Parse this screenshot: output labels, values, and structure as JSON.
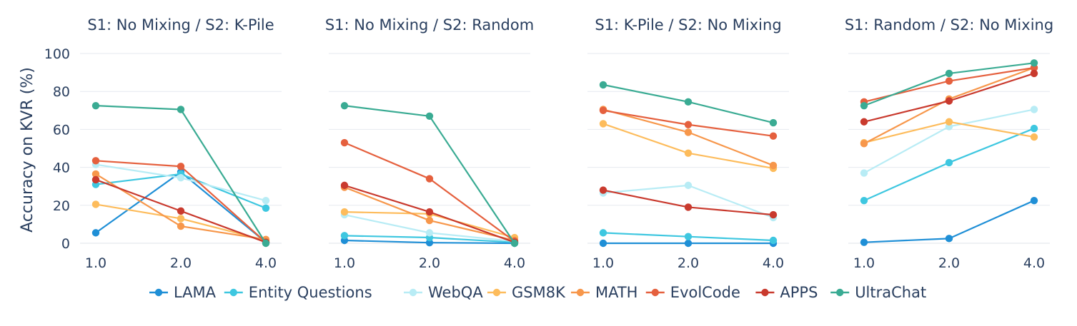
{
  "chart_data": {
    "type": "line",
    "ylabel": "Accuracy on KVR (%)",
    "xlabel": "",
    "x": [
      1.0,
      2.0,
      4.0
    ],
    "x_tick_labels": [
      "1.0",
      "2.0",
      "4.0"
    ],
    "ylim": [
      0,
      100
    ],
    "y_ticks": [
      0,
      20,
      40,
      60,
      80,
      100
    ],
    "grid": true,
    "legend_position": "bottom",
    "legend": [
      "LAMA",
      "Entity Questions",
      "WebQA",
      "GSM8K",
      "MATH",
      "EvolCode",
      "APPS",
      "UltraChat"
    ],
    "colors": {
      "LAMA": "#1f8fd6",
      "Entity Questions": "#3ec7e0",
      "WebQA": "#b8ecf5",
      "GSM8K": "#fdbc5c",
      "MATH": "#f7974b",
      "EvolCode": "#e5603e",
      "APPS": "#c93a2e",
      "UltraChat": "#3aab93"
    },
    "panels": [
      {
        "title": "S1: No Mixing / S2: K-Pile",
        "series": [
          {
            "name": "LAMA",
            "values": [
              5.5,
              37.5,
              0.5
            ]
          },
          {
            "name": "Entity Questions",
            "values": [
              31,
              36.5,
              18.5
            ]
          },
          {
            "name": "WebQA",
            "values": [
              41.5,
              34.5,
              22.5
            ]
          },
          {
            "name": "GSM8K",
            "values": [
              20.5,
              13,
              1.5
            ]
          },
          {
            "name": "MATH",
            "values": [
              36.5,
              9,
              2
            ]
          },
          {
            "name": "EvolCode",
            "values": [
              43.5,
              40.5,
              0.5
            ]
          },
          {
            "name": "APPS",
            "values": [
              33.5,
              17,
              0.5
            ]
          },
          {
            "name": "UltraChat",
            "values": [
              72.5,
              70.5,
              0
            ]
          }
        ]
      },
      {
        "title": "S1: No Mixing / S2: Random",
        "series": [
          {
            "name": "LAMA",
            "values": [
              1.5,
              0.3,
              0
            ]
          },
          {
            "name": "Entity Questions",
            "values": [
              4,
              3,
              0.5
            ]
          },
          {
            "name": "WebQA",
            "values": [
              15,
              5.5,
              1
            ]
          },
          {
            "name": "GSM8K",
            "values": [
              16.5,
              15.5,
              3
            ]
          },
          {
            "name": "MATH",
            "values": [
              29.5,
              12,
              1.5
            ]
          },
          {
            "name": "EvolCode",
            "values": [
              53,
              34,
              1
            ]
          },
          {
            "name": "APPS",
            "values": [
              30.5,
              16.5,
              0.5
            ]
          },
          {
            "name": "UltraChat",
            "values": [
              72.5,
              67,
              0
            ]
          }
        ]
      },
      {
        "title": "S1: K-Pile / S2: No Mixing",
        "series": [
          {
            "name": "LAMA",
            "values": [
              0,
              0,
              0
            ]
          },
          {
            "name": "Entity Questions",
            "values": [
              5.5,
              3.5,
              1.5
            ]
          },
          {
            "name": "WebQA",
            "values": [
              26.5,
              30.5,
              13.5
            ]
          },
          {
            "name": "GSM8K",
            "values": [
              63,
              47.5,
              39.5
            ]
          },
          {
            "name": "MATH",
            "values": [
              70.5,
              58.5,
              41
            ]
          },
          {
            "name": "EvolCode",
            "values": [
              70,
              62.5,
              56.5
            ]
          },
          {
            "name": "APPS",
            "values": [
              28,
              19,
              15
            ]
          },
          {
            "name": "UltraChat",
            "values": [
              83.5,
              74.5,
              63.5
            ]
          }
        ]
      },
      {
        "title": "S1: Random / S2: No Mixing",
        "series": [
          {
            "name": "LAMA",
            "values": [
              0.5,
              2.5,
              22.5
            ]
          },
          {
            "name": "Entity Questions",
            "values": [
              22.5,
              42.5,
              60.5
            ]
          },
          {
            "name": "WebQA",
            "values": [
              37,
              61.5,
              70.5
            ]
          },
          {
            "name": "GSM8K",
            "values": [
              53,
              64,
              56
            ]
          },
          {
            "name": "MATH",
            "values": [
              52.5,
              76,
              92.5
            ]
          },
          {
            "name": "EvolCode",
            "values": [
              74.5,
              85.5,
              92.5
            ]
          },
          {
            "name": "APPS",
            "values": [
              64,
              75,
              89.5
            ]
          },
          {
            "name": "UltraChat",
            "values": [
              72.5,
              89.5,
              95
            ]
          }
        ]
      }
    ]
  }
}
